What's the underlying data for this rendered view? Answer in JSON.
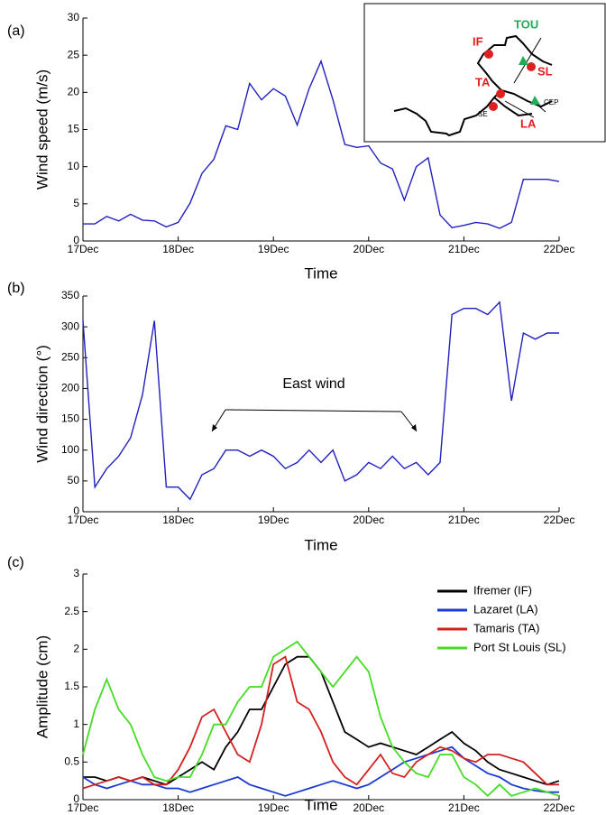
{
  "chart_data": [
    {
      "type": "line",
      "panel_label": "(a)",
      "ylabel": "Wind speed (m/s)",
      "xlabel": "Time",
      "map_labels": [
        "IF",
        "TOU",
        "SL",
        "TA",
        "CEP",
        "SE",
        "LA"
      ],
      "x": [
        17,
        17.125,
        17.25,
        17.375,
        17.5,
        17.625,
        17.75,
        17.875,
        18,
        18.125,
        18.25,
        18.375,
        18.5,
        18.625,
        18.75,
        18.875,
        19,
        19.125,
        19.25,
        19.375,
        19.5,
        19.625,
        19.75,
        19.875,
        20,
        20.125,
        20.25,
        20.375,
        20.5,
        20.625,
        20.75,
        20.875,
        21,
        21.125,
        21.25,
        21.375,
        21.5,
        21.625,
        21.75,
        21.875,
        22
      ],
      "series": [
        {
          "name": "Wind speed",
          "color": "#2020c0",
          "values": [
            2.3,
            2.3,
            3.3,
            2.7,
            3.6,
            2.8,
            2.7,
            1.9,
            2.5,
            5.1,
            9.1,
            11,
            15.5,
            15,
            21.2,
            19,
            20.5,
            19.5,
            15.6,
            20.5,
            24.2,
            19,
            13,
            12.6,
            12.8,
            10.5,
            9.7,
            5.5,
            10,
            11.2,
            3.5,
            1.8,
            2.1,
            2.5,
            2.3,
            1.7,
            2.5,
            8.3,
            8.3,
            8.3,
            8
          ]
        }
      ],
      "xlim": [
        17,
        22
      ],
      "xticks": [
        {
          "value": 17,
          "label": "17Dec"
        },
        {
          "value": 18,
          "label": "18Dec"
        },
        {
          "value": 19,
          "label": "19Dec"
        },
        {
          "value": 20,
          "label": "20Dec"
        },
        {
          "value": 21,
          "label": "21Dec"
        },
        {
          "value": 22,
          "label": "22Dec"
        }
      ],
      "ylim": [
        0,
        30
      ],
      "yticks": [
        0,
        5,
        10,
        15,
        20,
        25,
        30
      ]
    },
    {
      "type": "line",
      "panel_label": "(b)",
      "ylabel": "Wind direction (°)",
      "xlabel": "Time",
      "annotation": "East wind",
      "x": [
        17,
        17.125,
        17.25,
        17.375,
        17.5,
        17.625,
        17.75,
        17.875,
        18,
        18.125,
        18.25,
        18.375,
        18.5,
        18.625,
        18.75,
        18.875,
        19,
        19.125,
        19.25,
        19.375,
        19.5,
        19.625,
        19.75,
        19.875,
        20,
        20.125,
        20.25,
        20.375,
        20.5,
        20.625,
        20.75,
        20.875,
        21,
        21.125,
        21.25,
        21.375,
        21.5,
        21.625,
        21.75,
        21.875,
        22
      ],
      "series": [
        {
          "name": "Wind direction",
          "color": "#2020c0",
          "values": [
            310,
            40,
            70,
            90,
            120,
            190,
            310,
            40,
            40,
            20,
            60,
            70,
            100,
            100,
            90,
            100,
            90,
            70,
            80,
            100,
            80,
            100,
            50,
            60,
            80,
            70,
            90,
            70,
            80,
            60,
            80,
            320,
            330,
            330,
            320,
            340,
            180,
            290,
            280,
            290,
            290
          ]
        }
      ],
      "xlim": [
        17,
        22
      ],
      "xticks": [
        {
          "value": 17,
          "label": "17Dec"
        },
        {
          "value": 18,
          "label": "18Dec"
        },
        {
          "value": 19,
          "label": "19Dec"
        },
        {
          "value": 20,
          "label": "20Dec"
        },
        {
          "value": 21,
          "label": "21Dec"
        },
        {
          "value": 22,
          "label": "22Dec"
        }
      ],
      "ylim": [
        0,
        350
      ],
      "yticks": [
        0,
        50,
        100,
        150,
        200,
        250,
        300,
        350
      ]
    },
    {
      "type": "line",
      "panel_label": "(c)",
      "ylabel": "Amplitude (cm)",
      "xlabel": "Time",
      "legend": "upper right",
      "x": [
        17,
        17.125,
        17.25,
        17.375,
        17.5,
        17.625,
        17.75,
        17.875,
        18,
        18.125,
        18.25,
        18.375,
        18.5,
        18.625,
        18.75,
        18.875,
        19,
        19.125,
        19.25,
        19.375,
        19.5,
        19.625,
        19.75,
        19.875,
        20,
        20.125,
        20.25,
        20.375,
        20.5,
        20.625,
        20.75,
        20.875,
        21,
        21.125,
        21.25,
        21.375,
        21.5,
        21.625,
        21.75,
        21.875,
        22
      ],
      "series": [
        {
          "name": "Ifremer (IF)",
          "color": "#000000",
          "values": [
            0.3,
            0.3,
            0.25,
            0.3,
            0.25,
            0.3,
            0.25,
            0.2,
            0.3,
            0.4,
            0.5,
            0.4,
            0.7,
            0.9,
            1.2,
            1.2,
            1.5,
            1.8,
            1.9,
            1.9,
            1.7,
            1.3,
            0.9,
            0.8,
            0.7,
            0.75,
            0.7,
            0.65,
            0.6,
            0.7,
            0.8,
            0.9,
            0.75,
            0.65,
            0.5,
            0.4,
            0.35,
            0.3,
            0.25,
            0.2,
            0.25
          ]
        },
        {
          "name": "Lazaret (LA)",
          "color": "#1a3ad0",
          "values": [
            0.3,
            0.2,
            0.15,
            0.2,
            0.25,
            0.2,
            0.2,
            0.15,
            0.15,
            0.1,
            0.15,
            0.2,
            0.25,
            0.3,
            0.2,
            0.15,
            0.1,
            0.05,
            0.1,
            0.15,
            0.2,
            0.25,
            0.2,
            0.15,
            0.2,
            0.3,
            0.4,
            0.5,
            0.55,
            0.6,
            0.65,
            0.7,
            0.55,
            0.45,
            0.35,
            0.3,
            0.2,
            0.15,
            0.12,
            0.1,
            0.1
          ]
        },
        {
          "name": "Tamaris (TA)",
          "color": "#d42020",
          "values": [
            0.15,
            0.2,
            0.25,
            0.3,
            0.25,
            0.3,
            0.2,
            0.2,
            0.4,
            0.7,
            1.1,
            1.2,
            0.9,
            0.6,
            0.5,
            1,
            1.8,
            1.9,
            1.3,
            1.2,
            0.9,
            0.5,
            0.3,
            0.2,
            0.4,
            0.6,
            0.35,
            0.3,
            0.5,
            0.6,
            0.7,
            0.65,
            0.55,
            0.5,
            0.6,
            0.6,
            0.55,
            0.5,
            0.35,
            0.2,
            0.2
          ]
        },
        {
          "name": "Port St Louis (SL)",
          "color": "#44dd22",
          "values": [
            0.6,
            1.2,
            1.6,
            1.2,
            1,
            0.6,
            0.3,
            0.25,
            0.3,
            0.3,
            0.6,
            1,
            1,
            1.3,
            1.5,
            1.5,
            1.9,
            2,
            2.1,
            1.9,
            1.7,
            1.5,
            1.7,
            1.9,
            1.7,
            1.1,
            0.7,
            0.5,
            0.35,
            0.3,
            0.6,
            0.6,
            0.3,
            0.2,
            0.05,
            0.2,
            0.05,
            0.1,
            0.15,
            0.1,
            0.05
          ]
        }
      ],
      "xlim": [
        17,
        22
      ],
      "xticks": [
        {
          "value": 17,
          "label": "17Dec"
        },
        {
          "value": 18,
          "label": "18Dec"
        },
        {
          "value": 19,
          "label": "19Dec"
        },
        {
          "value": 20,
          "label": "20Dec"
        },
        {
          "value": 21,
          "label": "21Dec"
        },
        {
          "value": 22,
          "label": "22Dec"
        }
      ],
      "ylim": [
        0,
        3
      ],
      "yticks": [
        0,
        0.5,
        1,
        1.5,
        2,
        2.5,
        3
      ]
    }
  ]
}
